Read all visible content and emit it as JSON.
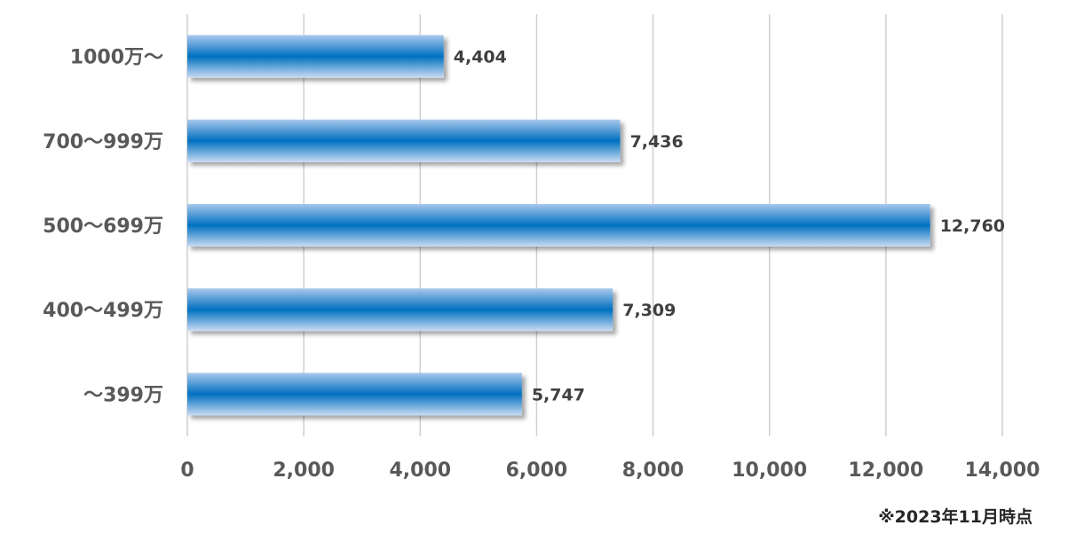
{
  "chart_data": {
    "type": "bar",
    "orientation": "horizontal",
    "categories": [
      "1000万～",
      "700～999万",
      "500～699万",
      "400～499万",
      "～399万"
    ],
    "values": [
      4404,
      7436,
      12760,
      7309,
      5747
    ],
    "value_labels": [
      "4,404",
      "7,436",
      "12,760",
      "7,309",
      "5,747"
    ],
    "xlim": [
      0,
      14000
    ],
    "x_ticks": [
      0,
      2000,
      4000,
      6000,
      8000,
      10000,
      12000,
      14000
    ],
    "x_tick_labels": [
      "0",
      "2,000",
      "4,000",
      "6,000",
      "8,000",
      "10,000",
      "12,000",
      "14,000"
    ],
    "grid": "vertical",
    "bar_color": "#0070C0",
    "bar_highlight_color": "#A9C8EC"
  },
  "note": "※2023年11月時点"
}
